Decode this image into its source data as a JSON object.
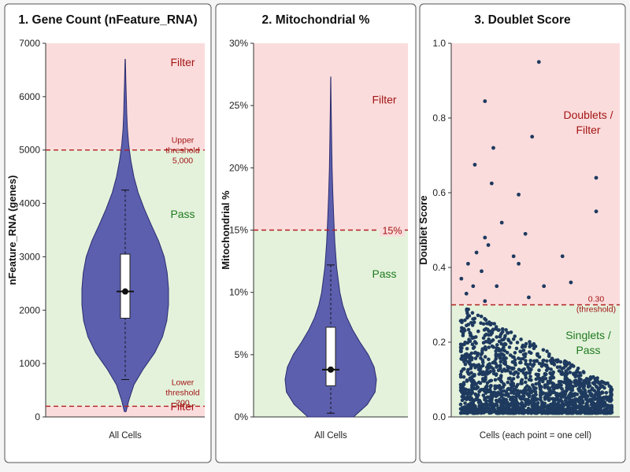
{
  "colors": {
    "pass_bg": "#e4f2dc",
    "filter_bg": "#fbdcdc",
    "threshold": "#b11f1f",
    "violin": "#5c5fae",
    "pass_text": "#1f7a1f",
    "filter_text": "#a31515",
    "dots": "#1e3a5f"
  },
  "chart_data": [
    {
      "type": "violin",
      "title": "1. Gene Count (nFeature_RNA)",
      "ylabel": "nFeature_RNA (genes)",
      "xlabel": "All Cells",
      "ylim": [
        0,
        7000
      ],
      "yticks": [
        0,
        1000,
        2000,
        3000,
        4000,
        5000,
        6000,
        7000
      ],
      "ytick_labels": [
        "0",
        "1000",
        "2000",
        "3000",
        "4000",
        "5000",
        "6000",
        "7000"
      ],
      "thresholds": [
        {
          "value": 5000,
          "label": [
            "Upper",
            "threshold",
            "5,000"
          ]
        },
        {
          "value": 200,
          "label": [
            "Lower",
            "threshold",
            "200"
          ]
        }
      ],
      "regions": [
        {
          "from": 5000,
          "to": 7000,
          "kind": "filter",
          "label": "Filter",
          "label_y": 6650
        },
        {
          "from": 200,
          "to": 5000,
          "kind": "pass",
          "label": "Pass",
          "label_y": 3800
        },
        {
          "from": 0,
          "to": 200,
          "kind": "filter",
          "label": "Filter",
          "label_y": 200
        }
      ],
      "violin_profile": [
        [
          100,
          0.02
        ],
        [
          300,
          0.08
        ],
        [
          600,
          0.2
        ],
        [
          900,
          0.42
        ],
        [
          1200,
          0.68
        ],
        [
          1500,
          0.86
        ],
        [
          1800,
          0.96
        ],
        [
          2100,
          1.0
        ],
        [
          2400,
          1.0
        ],
        [
          2700,
          0.97
        ],
        [
          3000,
          0.9
        ],
        [
          3300,
          0.77
        ],
        [
          3600,
          0.6
        ],
        [
          3900,
          0.44
        ],
        [
          4200,
          0.3
        ],
        [
          4500,
          0.2
        ],
        [
          4800,
          0.13
        ],
        [
          5100,
          0.08
        ],
        [
          5400,
          0.05
        ],
        [
          5700,
          0.035
        ],
        [
          6000,
          0.025
        ],
        [
          6300,
          0.015
        ],
        [
          6700,
          0.004
        ]
      ],
      "box": {
        "q1": 1850,
        "median": 2350,
        "q3": 3050,
        "whisker_low": 700,
        "whisker_high": 4250
      }
    },
    {
      "type": "violin",
      "title": "2. Mitochondrial %",
      "ylabel": "Mitochondrial %",
      "xlabel": "All Cells",
      "ylim": [
        0,
        30
      ],
      "yticks": [
        0,
        5,
        10,
        15,
        20,
        25,
        30
      ],
      "ytick_labels": [
        "0%",
        "5%",
        "10%",
        "15%",
        "20%",
        "25%",
        "30%"
      ],
      "thresholds": [
        {
          "value": 15,
          "label": [
            "15%"
          ]
        }
      ],
      "regions": [
        {
          "from": 15,
          "to": 30,
          "kind": "filter",
          "label": "Filter",
          "label_y": 25.5
        },
        {
          "from": 0,
          "to": 15,
          "kind": "pass",
          "label": "Pass",
          "label_y": 11.5
        }
      ],
      "violin_profile": [
        [
          0,
          0.5
        ],
        [
          1,
          0.8
        ],
        [
          2,
          0.97
        ],
        [
          3,
          1.0
        ],
        [
          4,
          0.95
        ],
        [
          5,
          0.82
        ],
        [
          6,
          0.64
        ],
        [
          7,
          0.48
        ],
        [
          8,
          0.35
        ],
        [
          9,
          0.26
        ],
        [
          10,
          0.2
        ],
        [
          12,
          0.13
        ],
        [
          14,
          0.09
        ],
        [
          16,
          0.065
        ],
        [
          18,
          0.045
        ],
        [
          20,
          0.03
        ],
        [
          22,
          0.02
        ],
        [
          25,
          0.008
        ],
        [
          27.3,
          0.002
        ]
      ],
      "box": {
        "q1": 2.5,
        "median": 3.8,
        "q3": 7.2,
        "whisker_low": 0.3,
        "whisker_high": 12.2
      }
    },
    {
      "type": "scatter",
      "title": "3. Doublet Score",
      "ylabel": "Doublet Score",
      "xlabel": "Cells (each point = one cell)",
      "ylim": [
        0,
        1.0
      ],
      "yticks": [
        0,
        0.2,
        0.4,
        0.6,
        0.8,
        1.0
      ],
      "ytick_labels": [
        "0.0",
        "0.2",
        "0.4",
        "0.6",
        "0.8",
        "1.0"
      ],
      "thresholds": [
        {
          "value": 0.3,
          "label": [
            "0.30",
            "(threshold)"
          ]
        }
      ],
      "regions": [
        {
          "from": 0.3,
          "to": 1.0,
          "kind": "filter",
          "label": "Doublets / Filter",
          "label_lines": [
            "Doublets /",
            "Filter"
          ],
          "label_y": 0.79
        },
        {
          "from": 0,
          "to": 0.3,
          "kind": "pass",
          "label": "Singlets / Pass",
          "label_lines": [
            "Singlets /",
            "Pass"
          ],
          "label_y": 0.2
        }
      ],
      "high_points": [
        [
          0.52,
          0.95
        ],
        [
          0.2,
          0.845
        ],
        [
          0.48,
          0.75
        ],
        [
          0.25,
          0.72
        ],
        [
          0.14,
          0.675
        ],
        [
          0.86,
          0.64
        ],
        [
          0.24,
          0.625
        ],
        [
          0.4,
          0.595
        ],
        [
          0.86,
          0.55
        ],
        [
          0.3,
          0.52
        ],
        [
          0.44,
          0.49
        ],
        [
          0.2,
          0.48
        ],
        [
          0.22,
          0.46
        ],
        [
          0.15,
          0.44
        ],
        [
          0.37,
          0.43
        ],
        [
          0.66,
          0.43
        ],
        [
          0.1,
          0.41
        ],
        [
          0.4,
          0.41
        ],
        [
          0.18,
          0.39
        ],
        [
          0.06,
          0.37
        ],
        [
          0.71,
          0.36
        ],
        [
          0.27,
          0.35
        ],
        [
          0.13,
          0.35
        ],
        [
          0.55,
          0.35
        ],
        [
          0.09,
          0.33
        ],
        [
          0.46,
          0.32
        ],
        [
          0.2,
          0.31
        ]
      ],
      "cluster_points": 1700
    }
  ]
}
